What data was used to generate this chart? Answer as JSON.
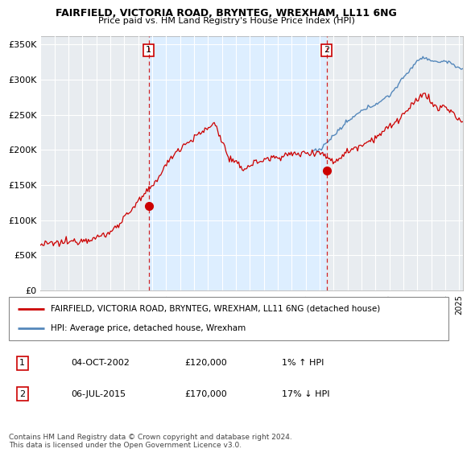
{
  "title": "FAIRFIELD, VICTORIA ROAD, BRYNTEG, WREXHAM, LL11 6NG",
  "subtitle": "Price paid vs. HM Land Registry's House Price Index (HPI)",
  "ylabel_ticks": [
    "£0",
    "£50K",
    "£100K",
    "£150K",
    "£200K",
    "£250K",
    "£300K",
    "£350K"
  ],
  "ytick_values": [
    0,
    50000,
    100000,
    150000,
    200000,
    250000,
    300000,
    350000
  ],
  "ylim": [
    0,
    362000
  ],
  "xlim_start": 1995.0,
  "xlim_end": 2025.3,
  "hpi_color": "#5588bb",
  "price_color": "#cc0000",
  "sale1_x": 2002.75,
  "sale1_y": 120000,
  "sale2_x": 2015.5,
  "sale2_y": 170000,
  "vline1_x": 2002.75,
  "vline2_x": 2015.5,
  "shade_color": "#ddeeff",
  "bg_color": "#e8ecf0",
  "legend_line1": "FAIRFIELD, VICTORIA ROAD, BRYNTEG, WREXHAM, LL11 6NG (detached house)",
  "legend_line2": "HPI: Average price, detached house, Wrexham",
  "table_row1_num": "1",
  "table_row1_date": "04-OCT-2002",
  "table_row1_price": "£120,000",
  "table_row1_hpi": "1% ↑ HPI",
  "table_row2_num": "2",
  "table_row2_date": "06-JUL-2015",
  "table_row2_price": "£170,000",
  "table_row2_hpi": "17% ↓ HPI",
  "footer": "Contains HM Land Registry data © Crown copyright and database right 2024.\nThis data is licensed under the Open Government Licence v3.0."
}
